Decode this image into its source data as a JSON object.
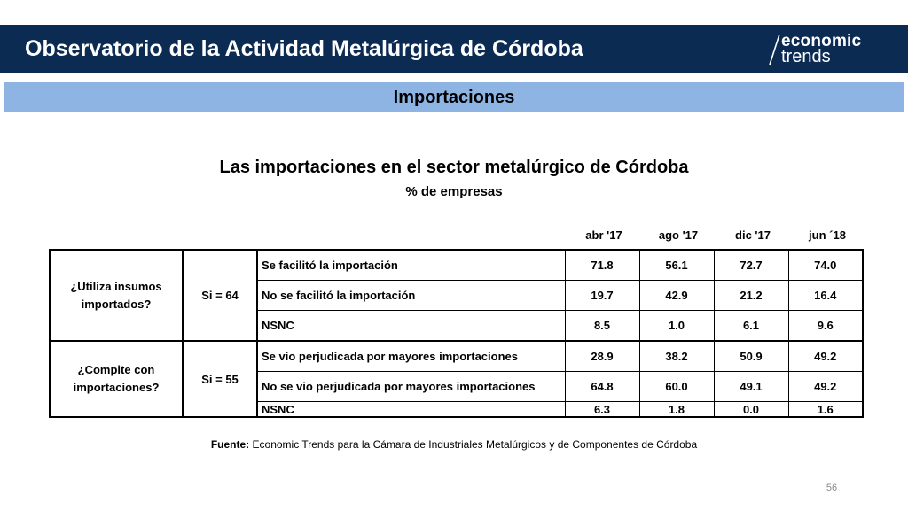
{
  "header": {
    "title": "Observatorio de la Actividad Metalúrgica de Córdoba"
  },
  "logo": {
    "line1": "economic",
    "line2": "trends"
  },
  "section": {
    "title": "Importaciones"
  },
  "table": {
    "title": "Las importaciones en el sector metalúrgico de Córdoba",
    "subtitle": "% de empresas",
    "columns": [
      "abr '17",
      "ago '17",
      "dic '17",
      "jun ´18"
    ],
    "groups": [
      {
        "question": "¿Utiliza insumos importados?",
        "si": "Si = 64",
        "rows": [
          {
            "label": "Se facilitó la importación",
            "values": [
              "71.8",
              "56.1",
              "72.7",
              "74.0"
            ]
          },
          {
            "label": "No se facilitó la importación",
            "values": [
              "19.7",
              "42.9",
              "21.2",
              "16.4"
            ]
          },
          {
            "label": "NSNC",
            "values": [
              "8.5",
              "1.0",
              "6.1",
              "9.6"
            ]
          }
        ]
      },
      {
        "question": "¿Compite con importaciones?",
        "si": "Si = 55",
        "rows": [
          {
            "label": "Se vio perjudicada por mayores importaciones",
            "values": [
              "28.9",
              "38.2",
              "50.9",
              "49.2"
            ]
          },
          {
            "label": "No se vio perjudicada por mayores importaciones",
            "values": [
              "64.8",
              "60.0",
              "49.1",
              "49.2"
            ]
          },
          {
            "label": "NSNC",
            "values": [
              "6.3",
              "1.8",
              "0.0",
              "1.6"
            ]
          }
        ]
      }
    ]
  },
  "source": {
    "label": "Fuente:",
    "text": "Economic Trends para la Cámara de Industriales Metalúrgicos y de Componentes de Córdoba"
  },
  "page_number": "56"
}
